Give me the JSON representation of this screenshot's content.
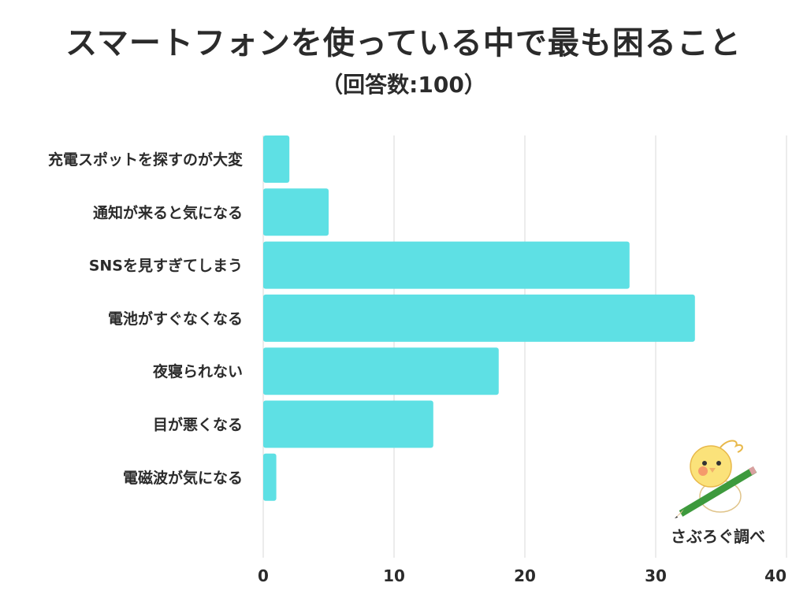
{
  "chart_data": {
    "type": "bar",
    "orientation": "horizontal",
    "title": "スマートフォンを使っている中で最も困ること",
    "subtitle": "（回答数:100）",
    "categories": [
      "充電スポットを探すのが大変",
      "通知が来ると気になる",
      "SNSを見すぎてしまう",
      "電池がすぐなくなる",
      "夜寝られない",
      "目が悪くなる",
      "電磁波が気になる"
    ],
    "values": [
      2,
      5,
      28,
      33,
      18,
      13,
      1
    ],
    "xlim": [
      0,
      40
    ],
    "xticks": [
      "0",
      "10",
      "20",
      "30",
      "40"
    ],
    "grid": true,
    "bar_color": "#5ee0e4"
  },
  "credit": {
    "text": "さぶろぐ調べ",
    "icon": "bird-with-pencil-icon"
  }
}
